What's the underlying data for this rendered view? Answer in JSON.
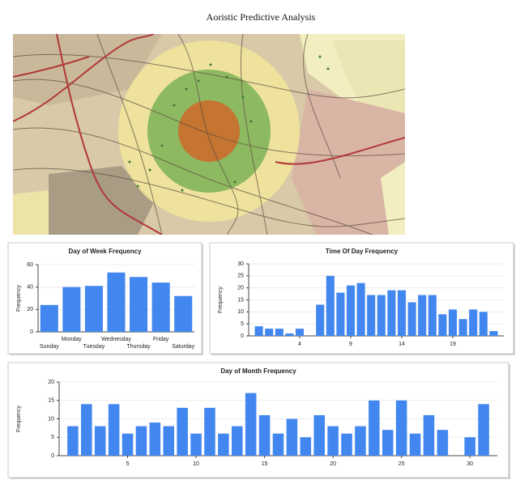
{
  "title": "Aoristic  Predictive Analysis",
  "chart_data": [
    {
      "type": "bar",
      "title": "Day of Week Frequency",
      "y_label": "Frequency",
      "categories": [
        "Sunday",
        "Monday",
        "Tuesday",
        "Wednesday",
        "Thursday",
        "Friday",
        "Saturday"
      ],
      "values": [
        24,
        40,
        41,
        53,
        49,
        44,
        32
      ],
      "color": "#4287f0",
      "ylim": [
        0,
        60
      ],
      "yticks": [
        0,
        20,
        40,
        60
      ],
      "grid": true
    },
    {
      "type": "bar",
      "title": "Time Of Day Frequency",
      "y_label": "Frequency",
      "x": [
        0,
        1,
        2,
        3,
        4,
        5,
        6,
        7,
        8,
        9,
        10,
        11,
        12,
        13,
        14,
        15,
        16,
        17,
        18,
        19,
        20,
        21,
        22,
        23
      ],
      "values": [
        4,
        3,
        3,
        1,
        3,
        0,
        13,
        25,
        18,
        21,
        22,
        17,
        17,
        19,
        19,
        14,
        17,
        17,
        9,
        11,
        7,
        11,
        10,
        2
      ],
      "color": "#4287f0",
      "xlim": [
        -1,
        24
      ],
      "xticks": [
        4,
        9,
        14,
        19
      ],
      "ylim": [
        0,
        30
      ],
      "yticks": [
        0,
        5,
        10,
        15,
        20,
        25,
        30
      ],
      "grid": true
    },
    {
      "type": "bar",
      "title": "Day of Month Frequency",
      "y_label": "Frequency",
      "x": [
        1,
        2,
        3,
        4,
        5,
        6,
        7,
        8,
        9,
        10,
        11,
        12,
        13,
        14,
        15,
        16,
        17,
        18,
        19,
        20,
        21,
        22,
        23,
        24,
        25,
        26,
        27,
        28,
        29,
        30,
        31
      ],
      "values": [
        8,
        14,
        8,
        14,
        6,
        8,
        9,
        8,
        13,
        6,
        13,
        6,
        8,
        17,
        11,
        6,
        10,
        5,
        11,
        8,
        6,
        8,
        15,
        7,
        15,
        6,
        11,
        7,
        0,
        5,
        14
      ],
      "color": "#4287f0",
      "xlim": [
        0,
        32
      ],
      "xticks": [
        5,
        10,
        15,
        20,
        25,
        30
      ],
      "ylim": [
        0,
        20
      ],
      "yticks": [
        0,
        5,
        10,
        15,
        20
      ],
      "grid": true
    }
  ]
}
